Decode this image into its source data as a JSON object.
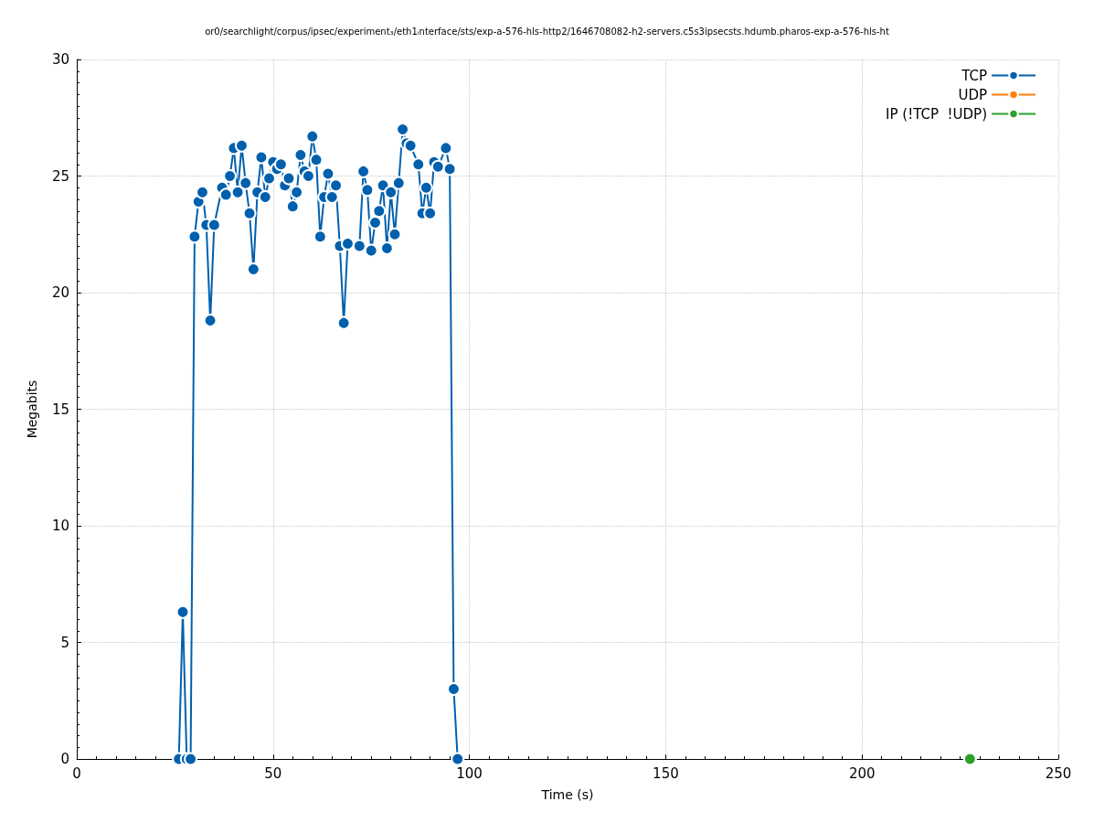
{
  "chart_data": {
    "type": "line",
    "title": "or0/searchlight/corpus/ipsec/experiment₃/eth1ᵢnterface/sts/exp-a-576-hls-http2/1646708082-h2-servers.c5s3ipsecsts.hdumb.pharos-exp-a-576-hls-ht",
    "xlabel": "Time (s)",
    "ylabel": "Megabits",
    "xlim": [
      0,
      250
    ],
    "xticks": [
      0,
      50,
      100,
      150,
      200,
      250
    ],
    "ylim": [
      0,
      30
    ],
    "yticks": [
      0,
      5,
      10,
      15,
      20,
      25,
      30
    ],
    "grid": true,
    "legend": "top right",
    "marker": "circle",
    "line_style": "solid",
    "series": [
      {
        "name": "TCP",
        "color": "#0060ad",
        "x": [
          26,
          27,
          28,
          29,
          30,
          31,
          32,
          33,
          34,
          35,
          37,
          38,
          39,
          40,
          41,
          42,
          43,
          44,
          45,
          46,
          47,
          48,
          49,
          50,
          51,
          52,
          53,
          54,
          55,
          56,
          57,
          58,
          59,
          60,
          61,
          62,
          63,
          64,
          65,
          66,
          67,
          68,
          69,
          72,
          73,
          74,
          75,
          76,
          77,
          78,
          79,
          80,
          81,
          82,
          83,
          84,
          85,
          87,
          88,
          89,
          90,
          91,
          92,
          94,
          95,
          96,
          97
        ],
        "values": [
          0,
          6.3,
          0,
          0,
          22.4,
          23.9,
          24.3,
          22.9,
          18.8,
          22.9,
          24.5,
          24.2,
          25.0,
          26.2,
          24.3,
          26.3,
          24.7,
          23.4,
          21.0,
          24.3,
          25.8,
          24.1,
          24.9,
          25.6,
          25.3,
          25.5,
          24.6,
          24.9,
          23.7,
          24.3,
          25.9,
          25.2,
          25.0,
          26.7,
          25.7,
          22.4,
          24.1,
          25.1,
          24.1,
          24.6,
          22.0,
          18.7,
          22.1,
          22.0,
          25.2,
          24.4,
          21.8,
          23.0,
          23.5,
          24.6,
          21.9,
          24.3,
          22.5,
          24.7,
          27.0,
          26.4,
          26.3,
          25.5,
          23.4,
          24.5,
          23.4,
          25.6,
          25.4,
          26.2,
          25.3,
          3.0,
          0
        ]
      },
      {
        "name": "UDP",
        "color": "#ff7f0e"
      },
      {
        "name": "IP (!TCP  !UDP)",
        "color": "#2ca02c",
        "x": [
          227.5
        ],
        "values": [
          0
        ]
      }
    ]
  }
}
